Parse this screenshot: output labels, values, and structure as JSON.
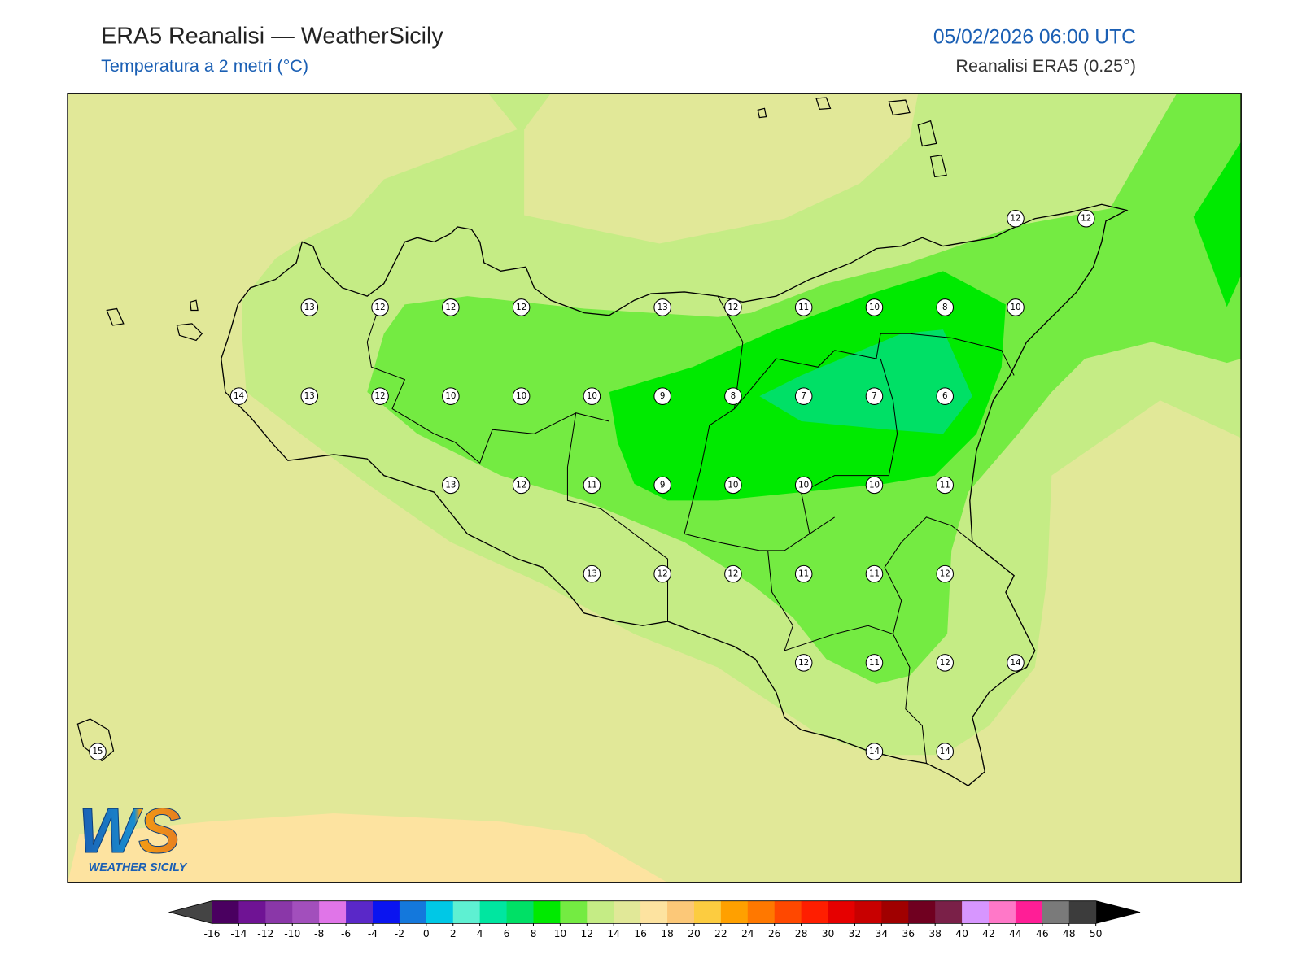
{
  "header": {
    "title": "ERA5 Reanalisi — WeatherSicily",
    "subtitle": "Temperatura a 2 metri (°C)",
    "datetime": "05/02/2026 06:00 UTC",
    "source": "Reanalisi ERA5 (0.25°)"
  },
  "map": {
    "stations": [
      12,
      12,
      13,
      12,
      12,
      12,
      13,
      12,
      11,
      10,
      8,
      10,
      14,
      13,
      12,
      10,
      10,
      10,
      9,
      8,
      7,
      7,
      6,
      13,
      12,
      11,
      9,
      10,
      10,
      10,
      11,
      13,
      12,
      12,
      11,
      11,
      12,
      12,
      11,
      12,
      14,
      15,
      14,
      14
    ],
    "levels": [
      -16,
      -14,
      -12,
      -10,
      -8,
      -6,
      -4,
      -2,
      0,
      2,
      4,
      6,
      8,
      10,
      12,
      14,
      16,
      18,
      20,
      22,
      24,
      26,
      28,
      30,
      32,
      34,
      36,
      38,
      40,
      42,
      44,
      46,
      48,
      50
    ],
    "colors": [
      "#4a0060",
      "#6f1394",
      "#8a37a8",
      "#a24fbc",
      "#e075e8",
      "#5a28c8",
      "#0a14f0",
      "#1478dc",
      "#00c8e6",
      "#5ef0d2",
      "#00e6a0",
      "#00e066",
      "#00ea00",
      "#74eb42",
      "#c5ec85",
      "#e1e898",
      "#fde3a0",
      "#fcc878",
      "#fccc40",
      "#ffa000",
      "#ff7800",
      "#ff4800",
      "#ff1e00",
      "#e60000",
      "#c80000",
      "#a00000",
      "#700020",
      "#7a2048",
      "#d796ff",
      "#ff78c8",
      "#ff1e96",
      "#7a7a7a",
      "#3c3c3c"
    ],
    "under_color": "#444444",
    "over_color": "#000000"
  },
  "logo": {
    "text": "WS",
    "caption": "WEATHER SICILY"
  }
}
